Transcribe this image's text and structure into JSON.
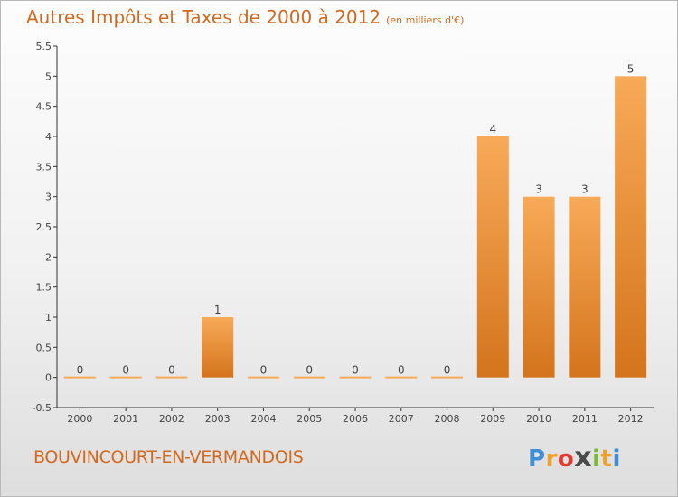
{
  "header": {
    "title": "Autres Impôts et Taxes de 2000 à 2012",
    "unit": "(en milliers d'€)"
  },
  "footer": {
    "commune": "BOUVINCOURT-EN-VERMANDOIS",
    "logo_text": "Proxiti"
  },
  "colors": {
    "title": "#d2691e",
    "bar_top": "#f8aa58",
    "bar_bottom": "#d4741c",
    "axis": "#333333",
    "grid": "#cccccc"
  },
  "chart_data": {
    "type": "bar",
    "title": "Autres Impôts et Taxes de 2000 à 2012",
    "subtitle": "(en milliers d'€)",
    "categories": [
      "2000",
      "2001",
      "2002",
      "2003",
      "2004",
      "2005",
      "2006",
      "2007",
      "2008",
      "2009",
      "2010",
      "2011",
      "2012"
    ],
    "values": [
      0,
      0,
      0,
      1,
      0,
      0,
      0,
      0,
      0,
      4,
      3,
      3,
      5
    ],
    "data_labels": [
      "0",
      "0",
      "0",
      "1",
      "0",
      "0",
      "0",
      "0",
      "0",
      "4",
      "3",
      "3",
      "5"
    ],
    "y_ticks": [
      "-0.5",
      "0",
      "0.5",
      "1",
      "1.5",
      "2",
      "2.5",
      "3",
      "3.5",
      "4",
      "4.5",
      "5",
      "5.5"
    ],
    "ylim": [
      -0.5,
      5.5
    ],
    "grid": false,
    "legend": "none"
  }
}
